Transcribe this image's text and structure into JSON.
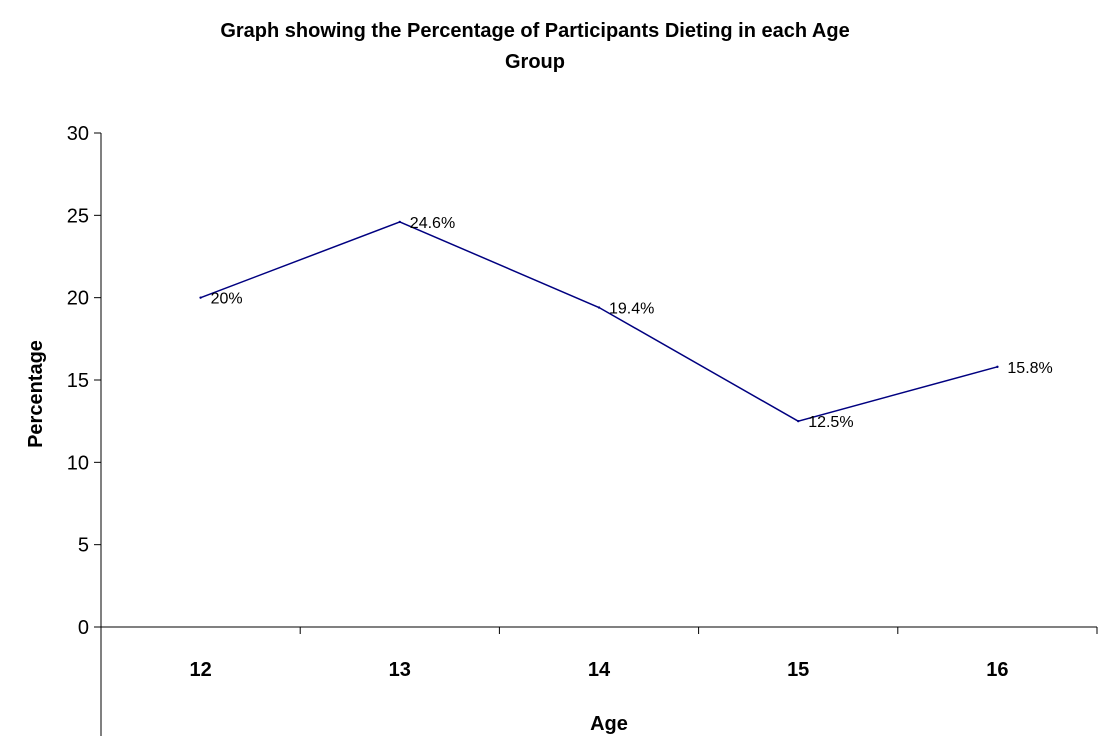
{
  "chart_data": {
    "type": "line",
    "title_lines": [
      "Graph showing the Percentage of Participants Dieting in each Age",
      "Group"
    ],
    "xlabel": "Age",
    "ylabel": "Percentage",
    "categories": [
      "12",
      "13",
      "14",
      "15",
      "16"
    ],
    "series": [
      {
        "values": [
          20,
          24.6,
          19.4,
          12.5,
          15.8
        ],
        "labels": [
          "20%",
          "24.6%",
          "19.4%",
          "12.5%",
          "15.8%"
        ],
        "color": "#000080"
      }
    ],
    "ylim": [
      0,
      30
    ],
    "yticks": [
      "0",
      "5",
      "10",
      "15",
      "20",
      "25",
      "30"
    ],
    "grid": false,
    "legend": "none"
  }
}
